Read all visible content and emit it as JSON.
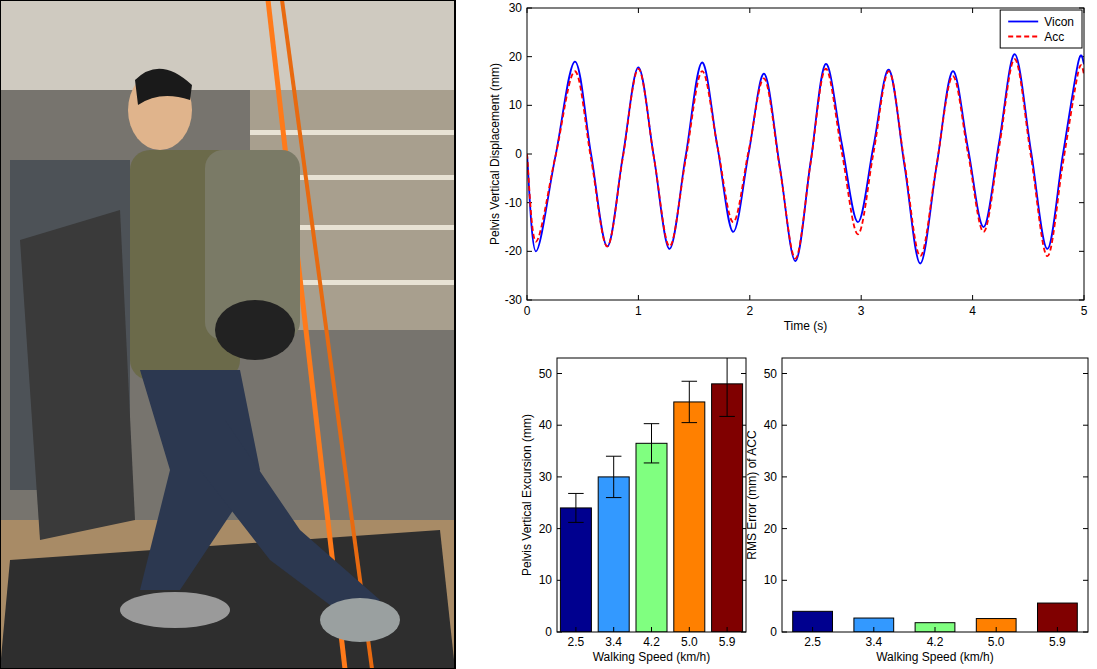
{
  "chart_data": [
    {
      "type": "line",
      "x_label": "Time (s)",
      "y_label": "Pelvis Vertical Displacement (mm)",
      "x": [
        0,
        0.08,
        0.255,
        0.43,
        0.575,
        0.72,
        0.86,
        1.0,
        1.14,
        1.28,
        1.425,
        1.57,
        1.71,
        1.85,
        1.99,
        2.13,
        2.27,
        2.41,
        2.545,
        2.68,
        2.825,
        2.97,
        3.11,
        3.25,
        3.39,
        3.53,
        3.675,
        3.82,
        3.96,
        4.1,
        4.24,
        4.38,
        4.525,
        4.67,
        4.81,
        4.95,
        5.0
      ],
      "series": [
        {
          "name": "Vicon",
          "color": "#0000ff",
          "line_style": "solid",
          "values": [
            0,
            -20,
            -0.5,
            19,
            0,
            -19,
            -0.5,
            17.8,
            -0.8,
            -19.5,
            -0.3,
            18.8,
            1.4,
            -16,
            0.2,
            16.5,
            -2.7,
            -22,
            -1.8,
            18.5,
            2.2,
            -14,
            1.6,
            17.3,
            -2.6,
            -22.5,
            -2.7,
            17,
            1,
            -15,
            2.7,
            20.5,
            0.5,
            -19.5,
            -0.2,
            19,
            18.5
          ]
        },
        {
          "name": "Acc",
          "color": "#ff0000",
          "line_style": "dashed",
          "values": [
            0,
            -18,
            -0.5,
            17,
            -1,
            -19,
            -0.8,
            17.5,
            -0.8,
            -19,
            -1,
            17,
            1.5,
            -14,
            0.7,
            15.5,
            -3,
            -21.5,
            -2,
            17.5,
            0.5,
            -16.5,
            0.2,
            17,
            -2,
            -21,
            -2.5,
            16,
            0,
            -16,
            1.7,
            19.5,
            -0.7,
            -21,
            -2,
            17,
            16.5
          ]
        }
      ],
      "xlim": [
        0,
        5
      ],
      "xticks": [
        0,
        1,
        2,
        3,
        4,
        5
      ],
      "ylim": [
        -30,
        30
      ],
      "yticks": [
        -30,
        -20,
        -10,
        0,
        10,
        20,
        30
      ],
      "legend": "upper right"
    },
    {
      "type": "bar",
      "x_label": "Walking Speed (km/h)",
      "y_label": "Pelvis Vertical Excursion (mm)",
      "categories": [
        "2.5",
        "3.4",
        "4.2",
        "5.0",
        "5.9"
      ],
      "values": [
        24,
        30,
        36.5,
        44.5,
        48
      ],
      "errors": [
        2.8,
        4,
        3.8,
        4,
        6.3
      ],
      "colors": [
        "#00008f",
        "#3399ff",
        "#80ff80",
        "#ff8000",
        "#800000"
      ],
      "ylim": [
        0,
        53
      ],
      "yticks": [
        0,
        10,
        20,
        30,
        40,
        50
      ]
    },
    {
      "type": "bar",
      "x_label": "Walking Speed (km/h)",
      "y_label": "RMS Error (mm) of ACC",
      "categories": [
        "2.5",
        "3.4",
        "4.2",
        "5.0",
        "5.9"
      ],
      "values": [
        4,
        2.7,
        1.8,
        2.6,
        5.6
      ],
      "colors": [
        "#00008f",
        "#3399ff",
        "#80ff80",
        "#ff8000",
        "#800000"
      ],
      "ylim": [
        0,
        53
      ],
      "yticks": [
        0,
        10,
        20,
        30,
        40,
        50
      ]
    }
  ]
}
